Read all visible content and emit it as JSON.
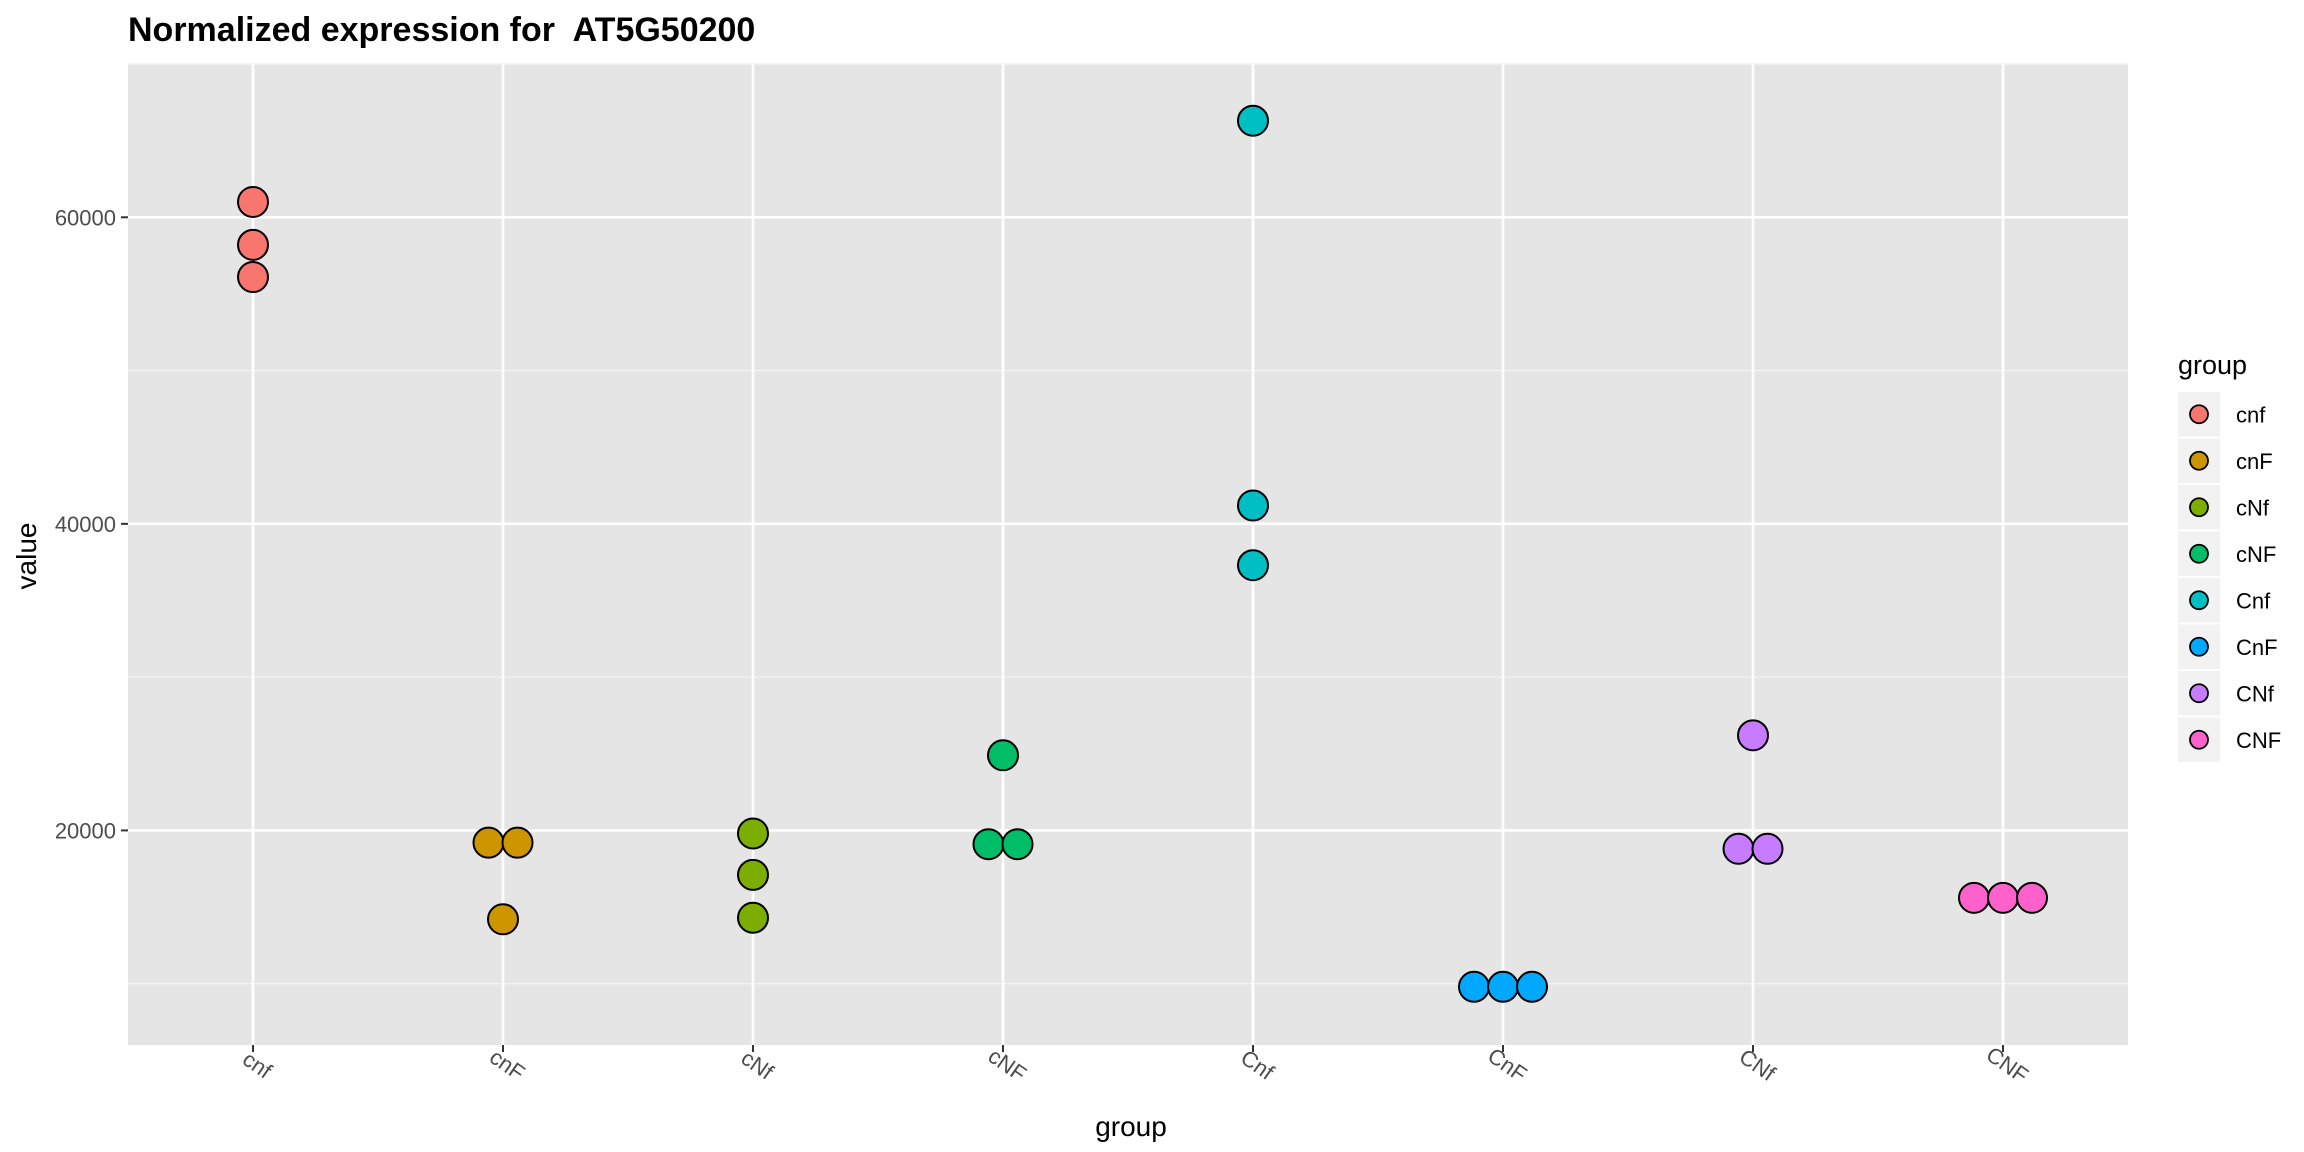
{
  "chart_data": {
    "type": "scatter",
    "title": "Normalized expression for  AT5G50200",
    "xlabel": "group",
    "ylabel": "value",
    "categories": [
      "cnf",
      "cnF",
      "cNf",
      "cNF",
      "Cnf",
      "CnF",
      "CNf",
      "CNF"
    ],
    "ylim": [
      6000,
      70000
    ],
    "y_ticks": [
      20000,
      40000,
      60000
    ],
    "grid": true,
    "legend": {
      "title": "group",
      "position": "right"
    },
    "series": [
      {
        "name": "cnf",
        "color": "#F8766D",
        "values": [
          61000,
          58200,
          56100
        ]
      },
      {
        "name": "cnF",
        "color": "#CD9600",
        "values": [
          19200,
          19200,
          14200
        ]
      },
      {
        "name": "cNf",
        "color": "#7CAE00",
        "values": [
          19800,
          17100,
          14300
        ]
      },
      {
        "name": "cNF",
        "color": "#00BE67",
        "values": [
          24900,
          19100,
          19100
        ]
      },
      {
        "name": "Cnf",
        "color": "#00BFC4",
        "values": [
          66300,
          41200,
          37300
        ]
      },
      {
        "name": "CnF",
        "color": "#00A9FF",
        "values": [
          9800,
          9800,
          9800
        ]
      },
      {
        "name": "CNf",
        "color": "#C77CFF",
        "values": [
          26200,
          18800,
          18800
        ]
      },
      {
        "name": "CNF",
        "color": "#FF61CC",
        "values": [
          15600,
          15600,
          15600
        ]
      }
    ]
  }
}
